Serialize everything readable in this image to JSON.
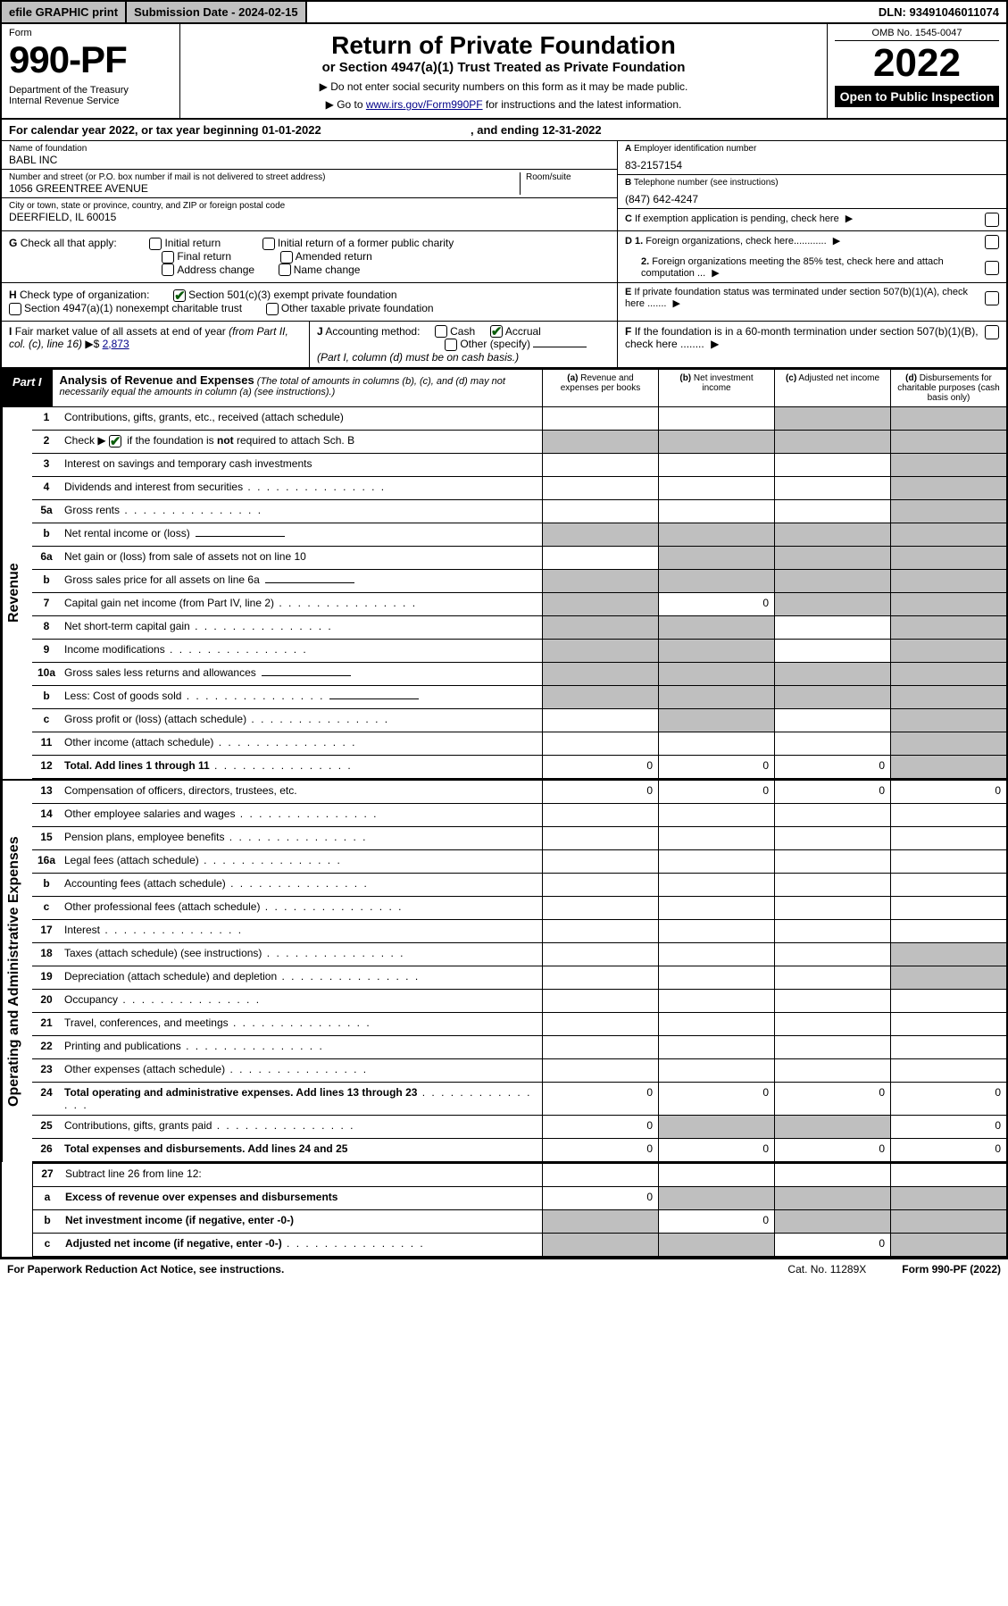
{
  "topbar": {
    "efile": "efile GRAPHIC print",
    "subdate_label": "Submission Date - 2024-02-15",
    "dln": "DLN: 93491046011074"
  },
  "header": {
    "form_label": "Form",
    "form_number": "990-PF",
    "dept": "Department of the Treasury\nInternal Revenue Service",
    "title": "Return of Private Foundation",
    "subtitle": "or Section 4947(a)(1) Trust Treated as Private Foundation",
    "note1": "▶ Do not enter social security numbers on this form as it may be made public.",
    "note2_pre": "▶ Go to ",
    "note2_link": "www.irs.gov/Form990PF",
    "note2_post": " for instructions and the latest information.",
    "omb": "OMB No. 1545-0047",
    "year": "2022",
    "open": "Open to Public Inspection"
  },
  "cal": {
    "text": "For calendar year 2022, or tax year beginning 01-01-2022",
    "ending": ", and ending 12-31-2022"
  },
  "name": {
    "lbl": "Name of foundation",
    "val": "BABL INC"
  },
  "addr": {
    "lbl": "Number and street (or P.O. box number if mail is not delivered to street address)",
    "val": "1056 GREENTREE AVENUE",
    "room_lbl": "Room/suite"
  },
  "city": {
    "lbl": "City or town, state or province, country, and ZIP or foreign postal code",
    "val": "DEERFIELD, IL  60015"
  },
  "ein": {
    "lbl": "A Employer identification number",
    "val": "83-2157154",
    "bold": "A"
  },
  "tel": {
    "lbl": "B Telephone number (see instructions)",
    "val": "(847) 642-4247",
    "bold": "B"
  },
  "c_lbl": "C If exemption application is pending, check here",
  "g": {
    "main": "G Check all that apply:",
    "o1": "Initial return",
    "o2": "Final return",
    "o3": "Address change",
    "o4": "Initial return of a former public charity",
    "o5": "Amended return",
    "o6": "Name change"
  },
  "h": {
    "main": "H Check type of organization:",
    "o1": "Section 501(c)(3) exempt private foundation",
    "o2": "Section 4947(a)(1) nonexempt charitable trust",
    "o3": "Other taxable private foundation"
  },
  "d": {
    "d1": "D 1. Foreign organizations, check here............",
    "d2": "2. Foreign organizations meeting the 85% test, check here and attach computation ..."
  },
  "e_lbl": "E  If private foundation status was terminated under section 507(b)(1)(A), check here .......",
  "i": {
    "main": "I Fair market value of all assets at end of year (from Part II, col. (c), line 16)",
    "val": "2,873",
    "prefix": "▶$ "
  },
  "j": {
    "main": "J Accounting method:",
    "o1": "Cash",
    "o2": "Accrual",
    "o3": "Other (specify)",
    "note": "(Part I, column (d) must be on cash basis.)"
  },
  "f_lbl": "F  If the foundation is in a 60-month termination under section 507(b)(1)(B), check here ........",
  "part1": {
    "tag": "Part I",
    "title": "Analysis of Revenue and Expenses",
    "sub": "(The total of amounts in columns (b), (c), and (d) may not necessarily equal the amounts in column (a) (see instructions).)",
    "ca": "(a)  Revenue and expenses per books",
    "cb": "(b)  Net investment income",
    "cc": "(c)  Adjusted net income",
    "cd": "(d)  Disbursements for charitable purposes (cash basis only)"
  },
  "side_rev": "Revenue",
  "side_exp": "Operating and Administrative Expenses",
  "rev_lines": [
    {
      "n": "1",
      "d": "Contributions, gifts, grants, etc., received (attach schedule)",
      "g": [
        "",
        "",
        "d",
        "d"
      ]
    },
    {
      "n": "2",
      "d": "Check ▶ ☑ if the foundation is not required to attach Sch. B",
      "bold_not": true,
      "dots": true,
      "g": [
        "g",
        "g",
        "d",
        "d"
      ]
    },
    {
      "n": "3",
      "d": "Interest on savings and temporary cash investments",
      "g": [
        "",
        "",
        "",
        "d"
      ]
    },
    {
      "n": "4",
      "d": "Dividends and interest from securities",
      "dots": true,
      "g": [
        "",
        "",
        "",
        "d"
      ]
    },
    {
      "n": "5a",
      "d": "Gross rents",
      "dots": true,
      "g": [
        "",
        "",
        "",
        "d"
      ]
    },
    {
      "n": "b",
      "d": "Net rental income or (loss)",
      "uline": true,
      "g": [
        "g",
        "g",
        "g",
        "d"
      ]
    },
    {
      "n": "6a",
      "d": "Net gain or (loss) from sale of assets not on line 10",
      "g": [
        "",
        "g",
        "g",
        "d"
      ]
    },
    {
      "n": "b",
      "d": "Gross sales price for all assets on line 6a",
      "uline": true,
      "g": [
        "g",
        "g",
        "g",
        "d"
      ]
    },
    {
      "n": "7",
      "d": "Capital gain net income (from Part IV, line 2)",
      "dots": true,
      "g": [
        "g",
        "",
        "g",
        "d"
      ],
      "v": [
        "",
        "0",
        "",
        ""
      ]
    },
    {
      "n": "8",
      "d": "Net short-term capital gain",
      "dots": true,
      "g": [
        "g",
        "g",
        "",
        "d"
      ]
    },
    {
      "n": "9",
      "d": "Income modifications",
      "dots": true,
      "g": [
        "g",
        "g",
        "",
        "d"
      ]
    },
    {
      "n": "10a",
      "d": "Gross sales less returns and allowances",
      "uline": true,
      "g": [
        "g",
        "g",
        "g",
        "d"
      ]
    },
    {
      "n": "b",
      "d": "Less: Cost of goods sold",
      "dots": true,
      "uline": true,
      "g": [
        "g",
        "g",
        "g",
        "d"
      ]
    },
    {
      "n": "c",
      "d": "Gross profit or (loss) (attach schedule)",
      "dots": true,
      "g": [
        "",
        "g",
        "",
        "d"
      ]
    },
    {
      "n": "11",
      "d": "Other income (attach schedule)",
      "dots": true,
      "g": [
        "",
        "",
        "",
        "d"
      ]
    },
    {
      "n": "12",
      "d": "Total. Add lines 1 through 11",
      "bold": true,
      "dots": true,
      "v": [
        "0",
        "0",
        "0",
        ""
      ],
      "g": [
        "",
        "",
        "",
        "d"
      ]
    }
  ],
  "exp_lines": [
    {
      "n": "13",
      "d": "Compensation of officers, directors, trustees, etc.",
      "v": [
        "0",
        "0",
        "0",
        "0"
      ]
    },
    {
      "n": "14",
      "d": "Other employee salaries and wages",
      "dots": true
    },
    {
      "n": "15",
      "d": "Pension plans, employee benefits",
      "dots": true
    },
    {
      "n": "16a",
      "d": "Legal fees (attach schedule)",
      "dots": true
    },
    {
      "n": "b",
      "d": "Accounting fees (attach schedule)",
      "dots": true
    },
    {
      "n": "c",
      "d": "Other professional fees (attach schedule)",
      "dots": true
    },
    {
      "n": "17",
      "d": "Interest",
      "dots": true
    },
    {
      "n": "18",
      "d": "Taxes (attach schedule) (see instructions)",
      "dots": true,
      "g": [
        "",
        "",
        "",
        "g"
      ]
    },
    {
      "n": "19",
      "d": "Depreciation (attach schedule) and depletion",
      "dots": true,
      "g": [
        "",
        "",
        "",
        "g"
      ]
    },
    {
      "n": "20",
      "d": "Occupancy",
      "dots": true
    },
    {
      "n": "21",
      "d": "Travel, conferences, and meetings",
      "dots": true
    },
    {
      "n": "22",
      "d": "Printing and publications",
      "dots": true
    },
    {
      "n": "23",
      "d": "Other expenses (attach schedule)",
      "dots": true
    },
    {
      "n": "24",
      "d": "Total operating and administrative expenses. Add lines 13 through 23",
      "bold": true,
      "dots": true,
      "v": [
        "0",
        "0",
        "0",
        "0"
      ]
    },
    {
      "n": "25",
      "d": "Contributions, gifts, grants paid",
      "dots": true,
      "v": [
        "0",
        "",
        "",
        "0"
      ],
      "g": [
        "",
        "g",
        "g",
        ""
      ]
    },
    {
      "n": "26",
      "d": "Total expenses and disbursements. Add lines 24 and 25",
      "bold": true,
      "v": [
        "0",
        "0",
        "0",
        "0"
      ]
    }
  ],
  "end_lines": [
    {
      "n": "27",
      "d": "Subtract line 26 from line 12:"
    },
    {
      "n": "a",
      "d": "Excess of revenue over expenses and disbursements",
      "bold": true,
      "v": [
        "0",
        "",
        "",
        ""
      ],
      "g": [
        "",
        "g",
        "g",
        "g"
      ]
    },
    {
      "n": "b",
      "d": "Net investment income (if negative, enter -0-)",
      "bold": true,
      "v": [
        "",
        "0",
        "",
        ""
      ],
      "g": [
        "g",
        "",
        "g",
        "g"
      ]
    },
    {
      "n": "c",
      "d": "Adjusted net income (if negative, enter -0-)",
      "bold": true,
      "dots": true,
      "v": [
        "",
        "",
        "0",
        ""
      ],
      "g": [
        "g",
        "g",
        "",
        "g"
      ]
    }
  ],
  "footer": {
    "l": "For Paperwork Reduction Act Notice, see instructions.",
    "m": "Cat. No. 11289X",
    "r": "Form 990-PF (2022)"
  }
}
